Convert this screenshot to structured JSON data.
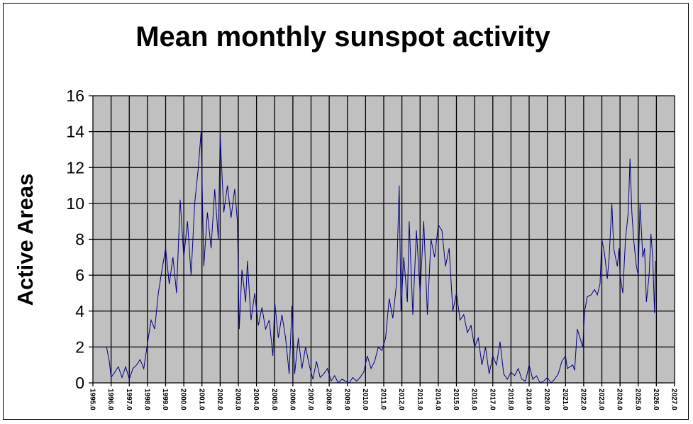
{
  "chart_data": {
    "type": "line",
    "title": "Mean monthly sunspot activity",
    "xlabel": "",
    "ylabel": "Active Areas",
    "xlim": [
      1995.0,
      2027.0
    ],
    "ylim": [
      0,
      16
    ],
    "x_ticks": [
      "1995.0",
      "1996.0",
      "1997.0",
      "1998.0",
      "1999.0",
      "2000.0",
      "2001.0",
      "2002.0",
      "2003.0",
      "2004.0",
      "2005.0",
      "2006.0",
      "2007.0",
      "2008.0",
      "2009.0",
      "2010.0",
      "2011.0",
      "2012.0",
      "2013.0",
      "2014.0",
      "2015.0",
      "2016.0",
      "2017.0",
      "2018.0",
      "2019.0",
      "2020.0",
      "2021.0",
      "2022.0",
      "2023.0",
      "2024.0",
      "2025.0",
      "2026.0",
      "2027.0"
    ],
    "y_ticks": [
      "0",
      "2",
      "4",
      "6",
      "8",
      "10",
      "12",
      "14",
      "16"
    ],
    "grid": true,
    "plot_background": "#c0c0c0",
    "line_color": "#000080",
    "points": [
      [
        1995.75,
        2.0
      ],
      [
        1995.9,
        1.2
      ],
      [
        1996.0,
        0.3
      ],
      [
        1996.2,
        0.6
      ],
      [
        1996.4,
        0.9
      ],
      [
        1996.6,
        0.3
      ],
      [
        1996.8,
        0.9
      ],
      [
        1997.0,
        0.2
      ],
      [
        1997.2,
        0.8
      ],
      [
        1997.4,
        1.0
      ],
      [
        1997.6,
        1.3
      ],
      [
        1997.8,
        0.8
      ],
      [
        1998.0,
        2.2
      ],
      [
        1998.2,
        3.5
      ],
      [
        1998.4,
        3.0
      ],
      [
        1998.6,
        5.0
      ],
      [
        1998.8,
        6.3
      ],
      [
        1999.0,
        7.5
      ],
      [
        1999.2,
        5.5
      ],
      [
        1999.4,
        7.0
      ],
      [
        1999.6,
        5.0
      ],
      [
        1999.8,
        10.2
      ],
      [
        2000.0,
        7.0
      ],
      [
        2000.2,
        9.0
      ],
      [
        2000.4,
        6.0
      ],
      [
        2000.6,
        10.0
      ],
      [
        2000.8,
        12.0
      ],
      [
        2000.95,
        14.0
      ],
      [
        2001.1,
        6.5
      ],
      [
        2001.3,
        9.5
      ],
      [
        2001.5,
        7.5
      ],
      [
        2001.7,
        10.8
      ],
      [
        2001.9,
        8.0
      ],
      [
        2002.0,
        13.8
      ],
      [
        2002.2,
        9.5
      ],
      [
        2002.4,
        11.0
      ],
      [
        2002.6,
        9.2
      ],
      [
        2002.8,
        10.8
      ],
      [
        2002.95,
        9.0
      ],
      [
        2003.05,
        3.0
      ],
      [
        2003.2,
        6.3
      ],
      [
        2003.4,
        4.5
      ],
      [
        2003.5,
        6.8
      ],
      [
        2003.7,
        3.5
      ],
      [
        2003.9,
        5.0
      ],
      [
        2004.1,
        3.2
      ],
      [
        2004.3,
        4.2
      ],
      [
        2004.5,
        3.0
      ],
      [
        2004.7,
        3.5
      ],
      [
        2004.9,
        1.5
      ],
      [
        2005.0,
        4.5
      ],
      [
        2005.2,
        2.5
      ],
      [
        2005.4,
        3.8
      ],
      [
        2005.6,
        2.5
      ],
      [
        2005.8,
        0.5
      ],
      [
        2005.95,
        4.3
      ],
      [
        2006.1,
        0.5
      ],
      [
        2006.3,
        2.5
      ],
      [
        2006.5,
        0.8
      ],
      [
        2006.7,
        2.0
      ],
      [
        2006.9,
        1.0
      ],
      [
        2007.1,
        0.2
      ],
      [
        2007.3,
        1.2
      ],
      [
        2007.5,
        0.3
      ],
      [
        2007.7,
        0.5
      ],
      [
        2007.9,
        0.8
      ],
      [
        2008.1,
        0.1
      ],
      [
        2008.3,
        0.4
      ],
      [
        2008.5,
        0.0
      ],
      [
        2008.7,
        0.2
      ],
      [
        2008.9,
        0.1
      ],
      [
        2009.1,
        0.0
      ],
      [
        2009.3,
        0.3
      ],
      [
        2009.5,
        0.1
      ],
      [
        2009.7,
        0.3
      ],
      [
        2009.9,
        0.6
      ],
      [
        2010.1,
        1.5
      ],
      [
        2010.3,
        0.8
      ],
      [
        2010.5,
        1.2
      ],
      [
        2010.7,
        2.0
      ],
      [
        2010.9,
        1.8
      ],
      [
        2011.1,
        2.5
      ],
      [
        2011.3,
        4.7
      ],
      [
        2011.5,
        3.6
      ],
      [
        2011.7,
        5.5
      ],
      [
        2011.85,
        11.0
      ],
      [
        2011.95,
        4.0
      ],
      [
        2012.1,
        7.0
      ],
      [
        2012.3,
        4.5
      ],
      [
        2012.4,
        9.0
      ],
      [
        2012.6,
        3.8
      ],
      [
        2012.8,
        8.5
      ],
      [
        2013.0,
        5.0
      ],
      [
        2013.2,
        9.0
      ],
      [
        2013.4,
        3.8
      ],
      [
        2013.6,
        8.0
      ],
      [
        2013.8,
        7.0
      ],
      [
        2014.0,
        8.8
      ],
      [
        2014.2,
        8.5
      ],
      [
        2014.4,
        6.5
      ],
      [
        2014.6,
        7.5
      ],
      [
        2014.8,
        4.0
      ],
      [
        2015.0,
        5.0
      ],
      [
        2015.2,
        3.5
      ],
      [
        2015.4,
        3.8
      ],
      [
        2015.6,
        2.8
      ],
      [
        2015.8,
        3.2
      ],
      [
        2016.0,
        2.0
      ],
      [
        2016.2,
        2.5
      ],
      [
        2016.4,
        1.0
      ],
      [
        2016.6,
        2.0
      ],
      [
        2016.8,
        0.5
      ],
      [
        2017.0,
        1.5
      ],
      [
        2017.2,
        1.0
      ],
      [
        2017.4,
        2.3
      ],
      [
        2017.6,
        0.5
      ],
      [
        2017.8,
        0.2
      ],
      [
        2018.0,
        0.6
      ],
      [
        2018.2,
        0.4
      ],
      [
        2018.4,
        0.8
      ],
      [
        2018.6,
        0.2
      ],
      [
        2018.8,
        0.1
      ],
      [
        2019.0,
        1.0
      ],
      [
        2019.2,
        0.2
      ],
      [
        2019.4,
        0.4
      ],
      [
        2019.6,
        0.0
      ],
      [
        2019.8,
        0.1
      ],
      [
        2020.0,
        0.3
      ],
      [
        2020.2,
        0.0
      ],
      [
        2020.4,
        0.2
      ],
      [
        2020.6,
        0.5
      ],
      [
        2020.8,
        1.2
      ],
      [
        2021.0,
        1.5
      ],
      [
        2021.1,
        0.8
      ],
      [
        2021.4,
        1.0
      ],
      [
        2021.5,
        0.7
      ],
      [
        2021.65,
        3.0
      ],
      [
        2021.8,
        2.5
      ],
      [
        2021.95,
        2.0
      ],
      [
        2022.05,
        4.0
      ],
      [
        2022.2,
        4.8
      ],
      [
        2022.4,
        4.9
      ],
      [
        2022.6,
        5.2
      ],
      [
        2022.75,
        4.9
      ],
      [
        2022.9,
        5.5
      ],
      [
        2023.0,
        8.0
      ],
      [
        2023.15,
        7.2
      ],
      [
        2023.3,
        5.8
      ],
      [
        2023.4,
        7.0
      ],
      [
        2023.55,
        10.0
      ],
      [
        2023.65,
        7.5
      ],
      [
        2023.85,
        6.5
      ],
      [
        2023.95,
        7.5
      ],
      [
        2024.0,
        6.0
      ],
      [
        2024.15,
        5.0
      ],
      [
        2024.3,
        8.0
      ],
      [
        2024.45,
        9.5
      ],
      [
        2024.55,
        12.5
      ],
      [
        2024.65,
        9.5
      ],
      [
        2024.75,
        8.0
      ],
      [
        2024.9,
        6.5
      ],
      [
        2025.0,
        6.0
      ],
      [
        2025.1,
        10.0
      ],
      [
        2025.25,
        7.0
      ],
      [
        2025.35,
        7.5
      ],
      [
        2025.45,
        4.5
      ],
      [
        2025.6,
        6.0
      ],
      [
        2025.7,
        8.3
      ],
      [
        2025.8,
        7.0
      ],
      [
        2025.9,
        3.9
      ],
      [
        2025.95,
        6.8
      ]
    ]
  }
}
